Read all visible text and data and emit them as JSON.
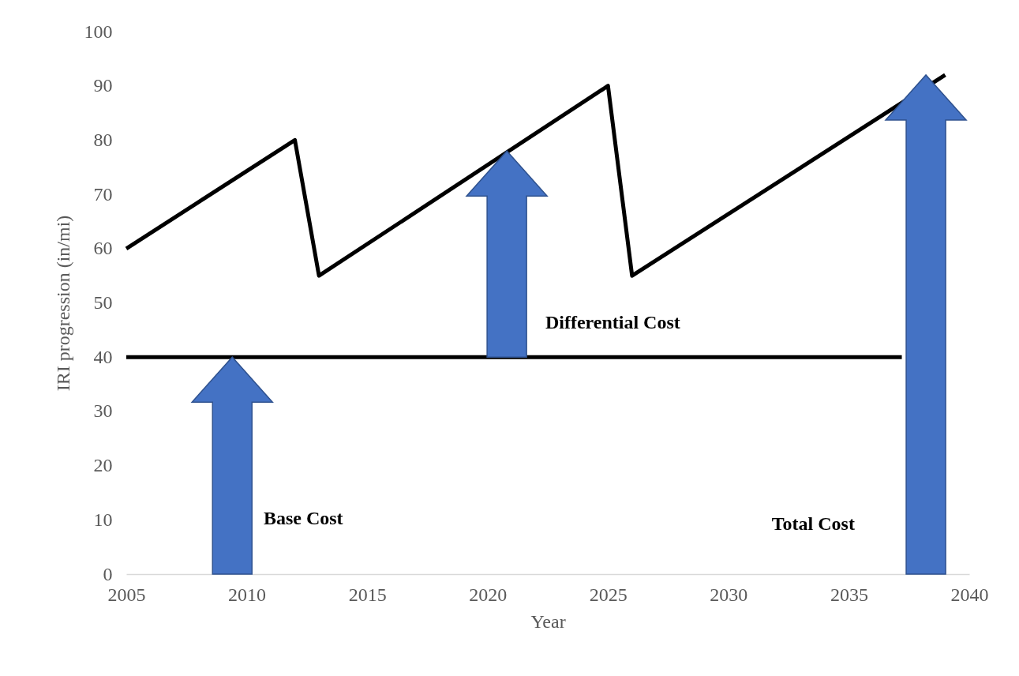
{
  "chart_data": {
    "type": "line",
    "xlabel": "Year",
    "ylabel": "IRI  progression (in/mi)",
    "series": [
      {
        "color": "#000000",
        "x": [
          2005,
          2012,
          2013,
          2025,
          2026,
          2039
        ],
        "values": [
          60,
          80,
          55,
          90,
          55,
          92
        ]
      },
      {
        "color": "#000000",
        "x": [
          2005,
          2037.2
        ],
        "values": [
          40,
          40
        ]
      }
    ],
    "xlim": [
      2005,
      2040
    ],
    "ylim": [
      0,
      100
    ],
    "xticks": [
      2005,
      2010,
      2015,
      2020,
      2025,
      2030,
      2035,
      2040
    ],
    "yticks": [
      0,
      10,
      20,
      30,
      40,
      50,
      60,
      70,
      80,
      90,
      100
    ],
    "grid": false,
    "annotations": [
      "Base Cost",
      "Differential Cost",
      "Total Cost"
    ]
  }
}
